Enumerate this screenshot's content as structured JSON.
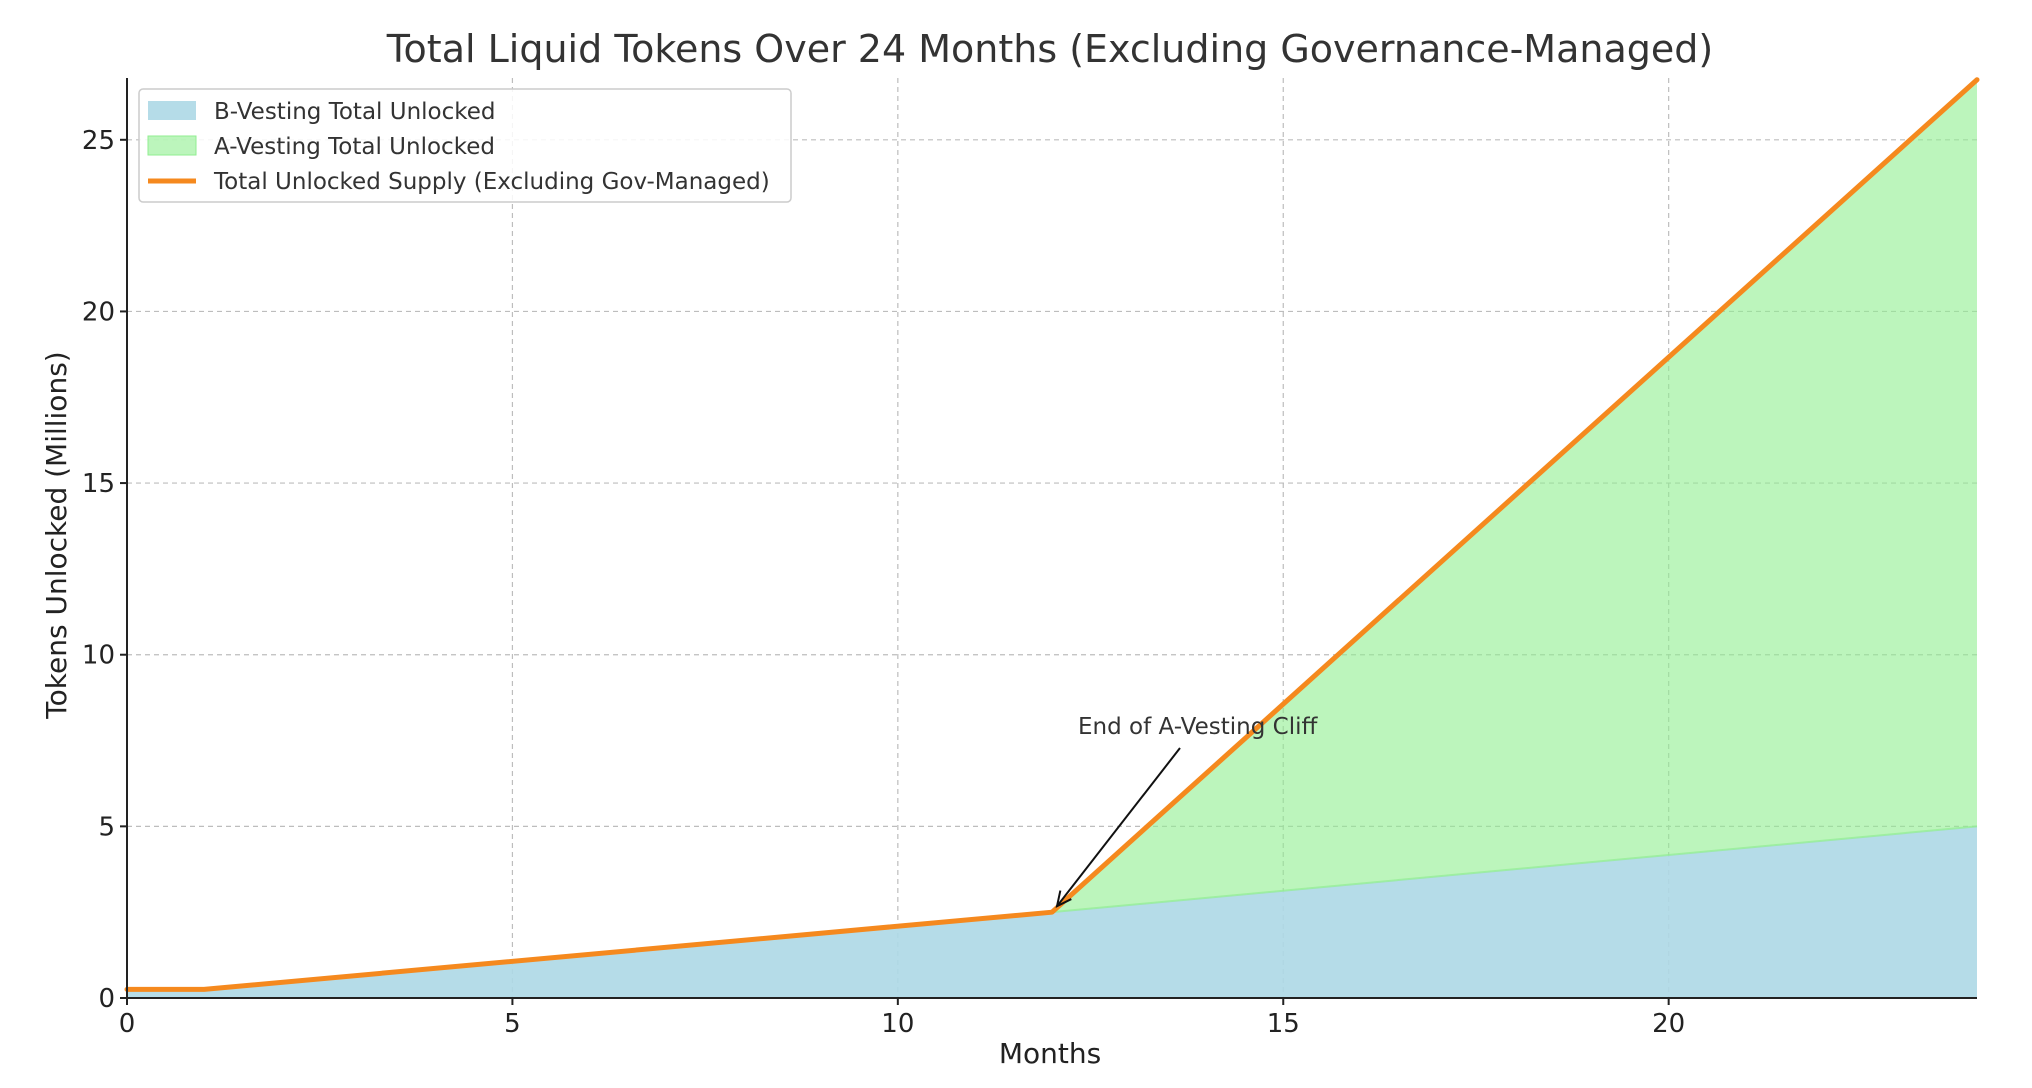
{
  "chart_data": {
    "type": "area",
    "title": "Total Liquid Tokens Over 24 Months (Excluding Governance-Managed)",
    "xlabel": "Months",
    "ylabel": "Tokens Unlocked (Millions)",
    "xlim": [
      0,
      24
    ],
    "ylim": [
      0,
      26.8
    ],
    "xticks": [
      0,
      5,
      10,
      15,
      20
    ],
    "yticks": [
      0,
      5,
      10,
      15,
      20,
      25
    ],
    "grid": true,
    "legend_position": "top-left",
    "x": [
      0,
      1,
      12,
      24
    ],
    "series": [
      {
        "name": "B-Vesting Total Unlocked",
        "kind": "area",
        "color": "#add8e6",
        "values": [
          0.25,
          0.25,
          2.5,
          5.0
        ]
      },
      {
        "name": "A-Vesting Total Unlocked",
        "kind": "stacked-area",
        "color": "#90ee90",
        "values": [
          0,
          0,
          0,
          21.75
        ]
      },
      {
        "name": "Total Unlocked Supply (Excluding Gov-Managed)",
        "kind": "line",
        "color": "#f5891e",
        "values": [
          0.25,
          0.25,
          2.5,
          26.75
        ]
      }
    ],
    "annotations": [
      {
        "text": "End of A-Vesting Cliff",
        "x": 12,
        "y": 2.5
      }
    ]
  }
}
